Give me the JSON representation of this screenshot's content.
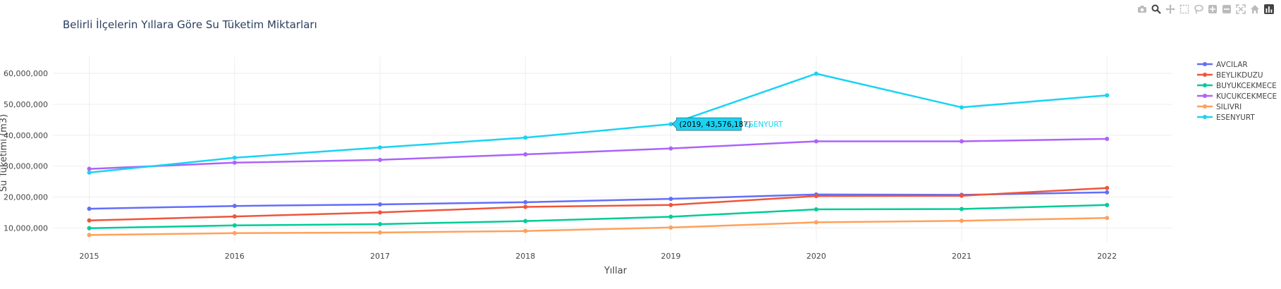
{
  "colors": {
    "grid": "#eeeeee",
    "text": "#444444",
    "title": "#2a3f5f",
    "modebar": "#bbbbbb",
    "modebar_active": "#444444"
  },
  "modebar": [
    "camera-icon",
    "zoom-icon",
    "pan-icon",
    "box-select-icon",
    "lasso-icon",
    "zoom-in-icon",
    "zoom-out-icon",
    "autoscale-icon",
    "reset-axes-icon",
    "plotly-logo-icon"
  ],
  "chart_data": {
    "type": "line",
    "title": "Belirli İlçelerin Yıllara Göre Su Tüketim Miktarları",
    "xlabel": "Yıllar",
    "ylabel": "Su Tüketimi (m3)",
    "x": [
      2015,
      2016,
      2017,
      2018,
      2019,
      2020,
      2021,
      2022
    ],
    "xlim": [
      2014.75,
      2022.45
    ],
    "ylim": [
      5500000,
      65500000
    ],
    "yticks": [
      10000000,
      20000000,
      30000000,
      40000000,
      50000000,
      60000000
    ],
    "ytick_labels": [
      "10,000,000",
      "20,000,000",
      "30,000,000",
      "40,000,000",
      "50,000,000",
      "60,000,000"
    ],
    "grid": true,
    "legend_position": "right",
    "series": [
      {
        "name": "AVCILAR",
        "color": "#636efa",
        "values": [
          16200000,
          17100000,
          17600000,
          18300000,
          19400000,
          20800000,
          20700000,
          21500000
        ]
      },
      {
        "name": "BEYLIKDUZU",
        "color": "#ef553b",
        "values": [
          12400000,
          13700000,
          15000000,
          16800000,
          17400000,
          20300000,
          20400000,
          22900000
        ]
      },
      {
        "name": "BUYUKCEKMECE",
        "color": "#00cc96",
        "values": [
          9900000,
          10800000,
          11200000,
          12200000,
          13600000,
          16000000,
          16100000,
          17400000
        ]
      },
      {
        "name": "KUCUKCEKMECE",
        "color": "#ab63fa",
        "values": [
          29100000,
          31100000,
          32000000,
          33800000,
          35700000,
          38000000,
          38000000,
          38800000
        ]
      },
      {
        "name": "SILIVRI",
        "color": "#ffa15a",
        "values": [
          7700000,
          8300000,
          8500000,
          9000000,
          10100000,
          11800000,
          12300000,
          13200000
        ]
      },
      {
        "name": "ESENYURT",
        "color": "#19d3f3",
        "values": [
          27900000,
          32700000,
          36000000,
          39200000,
          43576187,
          59900000,
          49000000,
          52900000
        ]
      }
    ],
    "hover": {
      "series_index": 5,
      "point_index": 4,
      "label": "(2019, 43,576,187)",
      "name": "ESENYURT"
    }
  }
}
